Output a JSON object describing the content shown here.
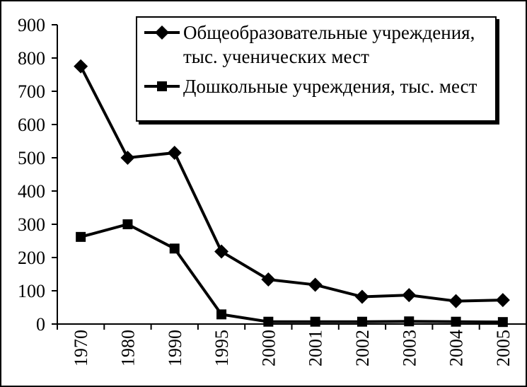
{
  "chart_data": {
    "type": "line",
    "categories": [
      "1970",
      "1980",
      "1990",
      "1995",
      "2000",
      "2001",
      "2002",
      "2003",
      "2004",
      "2005"
    ],
    "series": [
      {
        "name": "Общеобразовательные учреждения, тыс. ученических мест",
        "marker": "diamond",
        "color": "#000000",
        "values": [
          775,
          500,
          515,
          218,
          134,
          118,
          82,
          87,
          69,
          72
        ]
      },
      {
        "name": "Дошкольные учреждения, тыс. мест",
        "marker": "square",
        "color": "#000000",
        "values": [
          262,
          300,
          227,
          29,
          7,
          7,
          7,
          8,
          7,
          6
        ]
      }
    ],
    "title": "",
    "xlabel": "",
    "ylabel": "",
    "ylim": [
      0,
      900
    ],
    "ytick_step": 100,
    "yticks": [
      "0",
      "100",
      "200",
      "300",
      "400",
      "500",
      "600",
      "700",
      "800",
      "900"
    ],
    "grid": false,
    "legend_position": "top-right",
    "background": "#ffffff",
    "axis_color": "#000000"
  },
  "legend": {
    "entries": [
      {
        "marker": "diamond",
        "lines": [
          "Общеобразовательные учреждения,",
          "тыс. ученических мест"
        ]
      },
      {
        "marker": "square",
        "lines": [
          "Дошкольные учреждения, тыс. мест"
        ]
      }
    ]
  }
}
